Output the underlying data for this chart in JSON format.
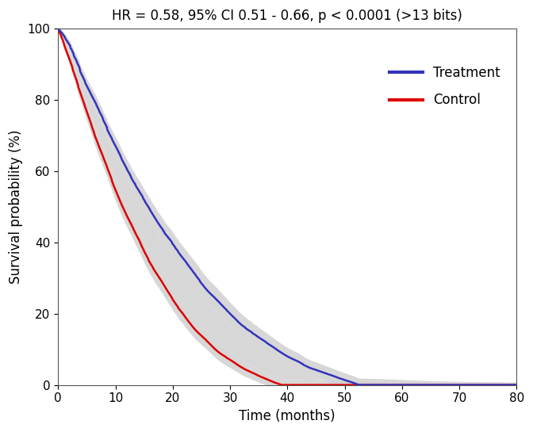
{
  "title": "HR = 0.58, 95% CI 0.51 - 0.66, p < 0.0001 (>13 bits)",
  "xlabel": "Time (months)",
  "ylabel": "Survival probability (%)",
  "xlim": [
    0,
    80
  ],
  "ylim": [
    0,
    100
  ],
  "xticks": [
    0,
    10,
    20,
    30,
    40,
    50,
    60,
    70,
    80
  ],
  "yticks": [
    0,
    20,
    40,
    60,
    80,
    100
  ],
  "treatment_color": "#3333bb",
  "control_color": "#dd0000",
  "ci_color": "#d0d0d0",
  "ci_alpha": 0.85,
  "line_width": 1.8,
  "background_color": "#ffffff",
  "title_fontsize": 12,
  "label_fontsize": 12,
  "tick_fontsize": 11,
  "legend_fontsize": 12,
  "control_approx_points": [
    [
      0,
      100
    ],
    [
      2,
      92
    ],
    [
      4,
      83
    ],
    [
      6,
      74
    ],
    [
      8,
      66
    ],
    [
      10,
      58
    ],
    [
      12,
      51
    ],
    [
      14,
      45
    ],
    [
      16,
      39
    ],
    [
      18,
      34
    ],
    [
      20,
      29
    ],
    [
      22,
      25
    ],
    [
      24,
      21
    ],
    [
      26,
      18
    ],
    [
      28,
      15
    ],
    [
      30,
      13
    ],
    [
      32,
      11
    ],
    [
      34,
      9.5
    ],
    [
      36,
      8.2
    ],
    [
      38,
      7.0
    ],
    [
      40,
      6.0
    ],
    [
      42,
      5.2
    ],
    [
      44,
      4.5
    ],
    [
      46,
      3.8
    ],
    [
      48,
      3.2
    ],
    [
      50,
      2.7
    ],
    [
      55,
      1.8
    ],
    [
      60,
      1.1
    ],
    [
      65,
      0.6
    ],
    [
      70,
      0.3
    ],
    [
      75,
      0.15
    ],
    [
      80,
      0.05
    ]
  ],
  "treatment_approx_points": [
    [
      0,
      100
    ],
    [
      2,
      96
    ],
    [
      4,
      90
    ],
    [
      6,
      84
    ],
    [
      8,
      78
    ],
    [
      10,
      72
    ],
    [
      12,
      66
    ],
    [
      14,
      61
    ],
    [
      16,
      56
    ],
    [
      18,
      51
    ],
    [
      20,
      47
    ],
    [
      22,
      43
    ],
    [
      24,
      39
    ],
    [
      26,
      35
    ],
    [
      28,
      32
    ],
    [
      30,
      29
    ],
    [
      32,
      26
    ],
    [
      34,
      24
    ],
    [
      36,
      22
    ],
    [
      38,
      20
    ],
    [
      40,
      18
    ],
    [
      42,
      16.5
    ],
    [
      44,
      15
    ],
    [
      46,
      14
    ],
    [
      48,
      13
    ],
    [
      50,
      12
    ],
    [
      55,
      9.5
    ],
    [
      60,
      7.5
    ],
    [
      65,
      6.0
    ],
    [
      70,
      5.0
    ],
    [
      75,
      4.5
    ],
    [
      80,
      4.0
    ]
  ],
  "ci_half_width_control": [
    [
      0,
      0.5
    ],
    [
      5,
      2.5
    ],
    [
      10,
      3.0
    ],
    [
      15,
      3.2
    ],
    [
      20,
      3.0
    ],
    [
      25,
      2.5
    ],
    [
      30,
      2.2
    ],
    [
      35,
      1.8
    ],
    [
      40,
      1.5
    ],
    [
      45,
      1.3
    ],
    [
      50,
      1.1
    ],
    [
      55,
      0.9
    ],
    [
      60,
      0.7
    ],
    [
      65,
      0.5
    ],
    [
      70,
      0.4
    ],
    [
      75,
      0.3
    ],
    [
      80,
      0.2
    ]
  ],
  "ci_half_width_treatment": [
    [
      0,
      0.5
    ],
    [
      5,
      2.0
    ],
    [
      10,
      2.5
    ],
    [
      15,
      3.0
    ],
    [
      20,
      3.2
    ],
    [
      25,
      3.5
    ],
    [
      30,
      3.2
    ],
    [
      35,
      2.8
    ],
    [
      40,
      2.5
    ],
    [
      45,
      2.2
    ],
    [
      50,
      2.0
    ],
    [
      55,
      1.8
    ],
    [
      60,
      1.5
    ],
    [
      65,
      1.2
    ],
    [
      70,
      1.0
    ],
    [
      75,
      0.9
    ],
    [
      80,
      0.8
    ]
  ]
}
